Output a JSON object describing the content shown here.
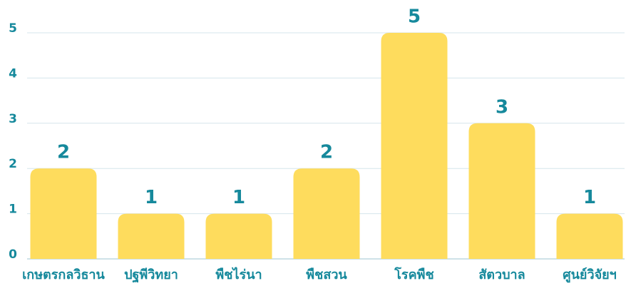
{
  "chart_data": {
    "type": "bar",
    "categories": [
      "เกษตรกลวิธาน",
      "ปฐพีวิทยา",
      "พืชไร่นา",
      "พืชสวน",
      "โรคพืช",
      "สัตวบาล",
      "ศูนย์วิจัยฯ"
    ],
    "values": [
      2,
      1,
      1,
      2,
      5,
      3,
      1
    ],
    "color": "#fedc5d",
    "ylim": [
      0,
      5
    ],
    "yticks": [
      0,
      1,
      2,
      3,
      4,
      5
    ],
    "grid": true
  }
}
